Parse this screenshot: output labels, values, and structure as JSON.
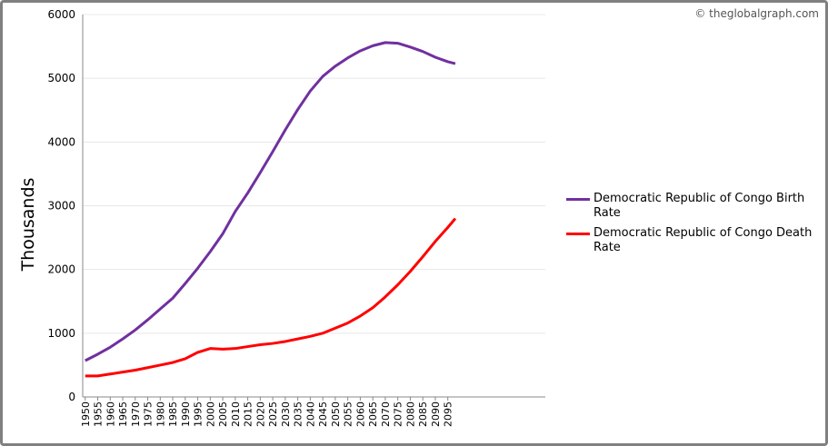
{
  "chart_data": {
    "type": "line",
    "watermark": "© theglobalgraph.com",
    "y_label": "Thousands",
    "x": [
      1950,
      1955,
      1960,
      1965,
      1970,
      1975,
      1980,
      1985,
      1990,
      1995,
      2000,
      2005,
      2010,
      2015,
      2020,
      2025,
      2030,
      2035,
      2040,
      2045,
      2050,
      2055,
      2060,
      2065,
      2070,
      2075,
      2080,
      2085,
      2090,
      2095,
      2098
    ],
    "series": [
      {
        "name": "Democratic Republic of Congo Birth Rate",
        "color": "#7030a0",
        "values": [
          570,
          670,
          780,
          910,
          1050,
          1210,
          1380,
          1550,
          1780,
          2020,
          2280,
          2560,
          2910,
          3200,
          3520,
          3850,
          4190,
          4510,
          4800,
          5030,
          5190,
          5320,
          5430,
          5510,
          5560,
          5550,
          5490,
          5420,
          5330,
          5260,
          5230
        ]
      },
      {
        "name": "Democratic Republic of Congo Death Rate",
        "color": "#ff0000",
        "values": [
          330,
          330,
          360,
          390,
          420,
          460,
          500,
          540,
          600,
          700,
          760,
          750,
          760,
          790,
          820,
          840,
          870,
          910,
          950,
          1000,
          1080,
          1160,
          1270,
          1400,
          1570,
          1760,
          1970,
          2200,
          2440,
          2660,
          2800
        ]
      }
    ],
    "xlim": [
      1949,
      2134
    ],
    "xticks": [
      1950,
      1955,
      1960,
      1965,
      1970,
      1975,
      1980,
      1985,
      1990,
      1995,
      2000,
      2005,
      2010,
      2015,
      2020,
      2025,
      2030,
      2035,
      2040,
      2045,
      2050,
      2055,
      2060,
      2065,
      2070,
      2075,
      2080,
      2085,
      2090,
      2095
    ],
    "ylim": [
      0,
      6000
    ],
    "yticks": [
      0,
      1000,
      2000,
      3000,
      4000,
      5000,
      6000
    ],
    "grid": true,
    "legend": "right"
  }
}
